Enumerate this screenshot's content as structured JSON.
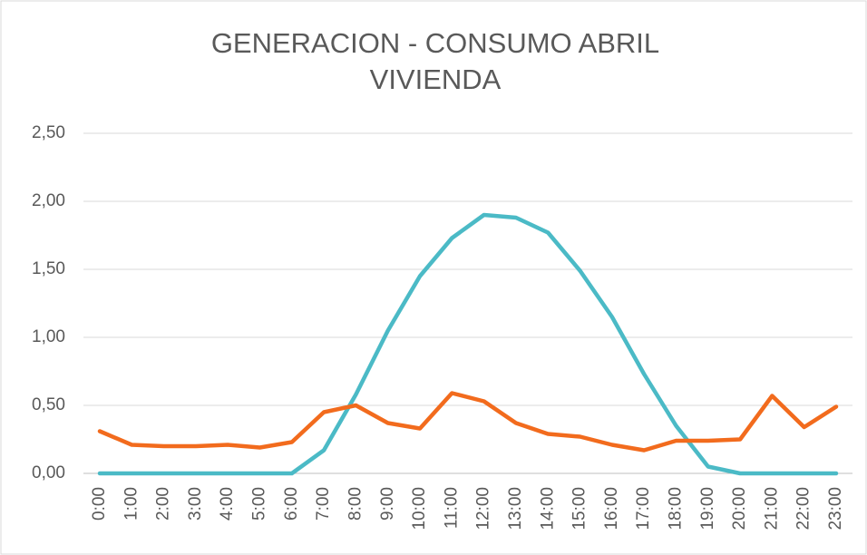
{
  "chart_data": {
    "type": "line",
    "title": "GENERACION - CONSUMO ABRIL VIVIENDA",
    "categories": [
      "0:00",
      "1:00",
      "2:00",
      "3:00",
      "4:00",
      "5:00",
      "6:00",
      "7:00",
      "8:00",
      "9:00",
      "10:00",
      "11:00",
      "12:00",
      "13:00",
      "14:00",
      "15:00",
      "16:00",
      "17:00",
      "18:00",
      "19:00",
      "20:00",
      "21:00",
      "22:00",
      "23:00"
    ],
    "series": [
      {
        "color": "#4bbac6",
        "values": [
          0,
          0,
          0,
          0,
          0,
          0,
          0,
          0.17,
          0.58,
          1.05,
          1.45,
          1.73,
          1.9,
          1.88,
          1.77,
          1.49,
          1.15,
          0.73,
          0.35,
          0.05,
          0,
          0,
          0,
          0
        ]
      },
      {
        "color": "#f26b1d",
        "values": [
          0.31,
          0.21,
          0.2,
          0.2,
          0.21,
          0.19,
          0.23,
          0.45,
          0.5,
          0.37,
          0.33,
          0.59,
          0.53,
          0.37,
          0.29,
          0.27,
          0.21,
          0.17,
          0.24,
          0.24,
          0.25,
          0.57,
          0.34,
          0.49
        ]
      }
    ],
    "ylim": [
      0,
      2.5
    ],
    "yticks": [
      {
        "value": 0,
        "label": "0,00"
      },
      {
        "value": 0.5,
        "label": "0,50"
      },
      {
        "value": 1,
        "label": "1,00"
      },
      {
        "value": 1.5,
        "label": "1,50"
      },
      {
        "value": 2,
        "label": "2,00"
      },
      {
        "value": 2.5,
        "label": "2,50"
      }
    ],
    "grid": true
  }
}
